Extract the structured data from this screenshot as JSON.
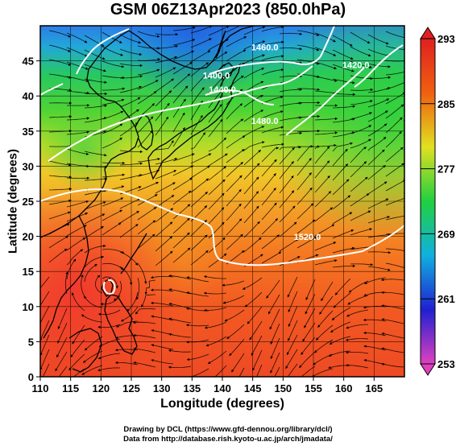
{
  "title": "GSM 06Z13Apr2023 (850.0hPa)",
  "axes": {
    "xlabel": "Longitude (degrees)",
    "ylabel": "Latitude  (degrees)",
    "x_ticks": [
      110,
      115,
      120,
      125,
      130,
      135,
      140,
      145,
      150,
      155,
      160,
      165
    ],
    "y_ticks": [
      0,
      5,
      10,
      15,
      20,
      25,
      30,
      35,
      40,
      45
    ],
    "xlim": [
      110,
      170
    ],
    "ylim": [
      0,
      50
    ]
  },
  "colorbar": {
    "labels": [
      253,
      261,
      269,
      277,
      285,
      293
    ],
    "range": [
      253,
      293
    ],
    "colors": [
      "#e040c0",
      "#2020d0",
      "#10b0e0",
      "#20d040",
      "#e0e020",
      "#f06010",
      "#e02020"
    ]
  },
  "contours": [
    {
      "label": "1520.0",
      "lon": 154,
      "lat": 19.5
    },
    {
      "label": "1480.0",
      "lon": 147,
      "lat": 36
    },
    {
      "label": "1440.0",
      "lon": 140,
      "lat": 40.5
    },
    {
      "label": "1400.0",
      "lon": 139,
      "lat": 42.5
    },
    {
      "label": "1460.0",
      "lon": 147,
      "lat": 46.5
    },
    {
      "label": "1420.0",
      "lon": 162,
      "lat": 44
    }
  ],
  "credits": {
    "line1": "Drawing by DCL (https://www.gfd-dennou.org/library/dcl/)",
    "line2": "Data from http://database.rish.kyoto-u.ac.jp/arch/jmadata/"
  }
}
